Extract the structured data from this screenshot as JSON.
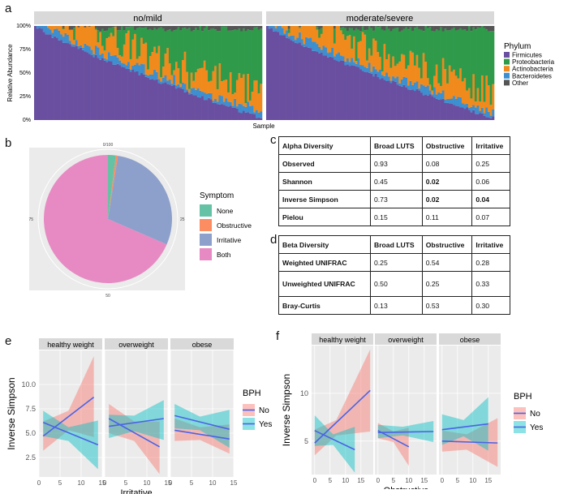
{
  "panel_labels": {
    "a": "a",
    "b": "b",
    "c": "c",
    "d": "d",
    "e": "e",
    "f": "f"
  },
  "chart_data": [
    {
      "type": "bar",
      "id": "a",
      "subtype": "stacked-relative-abundance",
      "facets": [
        "no/mild",
        "moderate/severe"
      ],
      "ylabel": "Relative Abundance",
      "xlabel": "Sample",
      "yticks": [
        "0%",
        "25%",
        "50%",
        "75%",
        "100%"
      ],
      "legend_title": "Phylum",
      "series": [
        {
          "name": "Firmicutes",
          "color": "#6a4fa0"
        },
        {
          "name": "Proteobacteria",
          "color": "#2e9a4a"
        },
        {
          "name": "Actinobacteria",
          "color": "#f08a1c"
        },
        {
          "name": "Bacteroidetes",
          "color": "#3d8fcf"
        },
        {
          "name": "Other",
          "color": "#555555"
        }
      ],
      "samples_per_facet": [
        105,
        105
      ],
      "firmicutes_range": [
        100,
        2
      ],
      "bacteroidetes_mean": 6,
      "actinobacteria_mean": 15,
      "other_mean": 3
    },
    {
      "type": "pie",
      "id": "b",
      "legend_title": "Symptom",
      "tick_labels": [
        "0/100",
        "25",
        "50",
        "75"
      ],
      "categories": [
        "None",
        "Obstructive",
        "Irritative",
        "Both"
      ],
      "values": [
        2,
        0.5,
        29,
        68.5
      ],
      "colors": [
        "#66c2a5",
        "#fc8d62",
        "#8da0cb",
        "#e78ac3"
      ]
    },
    {
      "type": "line",
      "id": "e",
      "facets": [
        "healthy weight",
        "overweight",
        "obese"
      ],
      "xlabel": "Irritative",
      "ylabel": "Inverse Simpson",
      "xlim": [
        0,
        15
      ],
      "ylim": [
        0.5,
        13.5
      ],
      "xticks": [
        0,
        5,
        10,
        15
      ],
      "yticks": [
        "2.5",
        "5.0",
        "7.5",
        "10.0"
      ],
      "legend_title": "BPH",
      "legend": [
        "No",
        "Yes"
      ],
      "series": [
        {
          "name": "No",
          "facets": [
            {
              "x": [
                1,
                13
              ],
              "y": [
                4.7,
                8.7
              ],
              "band": [
                [
                  1,
                  3.2,
                  6.2
                ],
                [
                  7,
                  5.3,
                  7.3
                ],
                [
                  13,
                  4.6,
                  12.9
                ]
              ]
            },
            {
              "x": [
                1,
                13
              ],
              "y": [
                6.5,
                3.6
              ],
              "band": [
                [
                  1,
                  5.0,
                  8.0
                ],
                [
                  7,
                  4.2,
                  6.2
                ],
                [
                  13,
                  0.8,
                  6.2
                ]
              ]
            },
            {
              "x": [
                1,
                14
              ],
              "y": [
                5.3,
                4.4
              ],
              "band": [
                [
                  1,
                  4.2,
                  6.5
                ],
                [
                  7,
                  4.3,
                  5.6
                ],
                [
                  14,
                  2.9,
                  5.9
                ]
              ]
            }
          ]
        },
        {
          "name": "Yes",
          "facets": [
            {
              "x": [
                1,
                14
              ],
              "y": [
                6.1,
                3.8
              ],
              "band": [
                [
                  1,
                  4.7,
                  7.3
                ],
                [
                  7,
                  4.2,
                  5.6
                ],
                [
                  14,
                  1.3,
                  6.3
                ]
              ]
            },
            {
              "x": [
                1,
                14
              ],
              "y": [
                5.7,
                6.5
              ],
              "band": [
                [
                  1,
                  4.5,
                  6.9
                ],
                [
                  7,
                  5.2,
                  6.8
                ],
                [
                  14,
                  4.3,
                  8.4
                ]
              ]
            },
            {
              "x": [
                1,
                14
              ],
              "y": [
                6.8,
                5.4
              ],
              "band": [
                [
                  1,
                  5.5,
                  8.0
                ],
                [
                  7,
                  5.3,
                  6.7
                ],
                [
                  14,
                  3.5,
                  7.4
                ]
              ]
            }
          ]
        }
      ]
    },
    {
      "type": "line",
      "id": "f",
      "facets": [
        "healthy weight",
        "overweight",
        "obese"
      ],
      "xlabel": "Obstructive",
      "ylabel": "Inverse Simpson",
      "xlim": [
        -1,
        19
      ],
      "ylim": [
        1.5,
        15
      ],
      "xticks": [
        0,
        5,
        10,
        15
      ],
      "yticks": [
        "5",
        "10"
      ],
      "legend_title": "BPH",
      "legend": [
        "No",
        "Yes"
      ],
      "series": [
        {
          "name": "No",
          "facets": [
            {
              "x": [
                0,
                18
              ],
              "y": [
                4.8,
                10.3
              ],
              "band": [
                [
                  0,
                  3.5,
                  6.2
                ],
                [
                  7,
                  5.6,
                  7.2
                ],
                [
                  18,
                  6.0,
                  14.6
                ]
              ]
            },
            {
              "x": [
                0,
                10
              ],
              "y": [
                6.1,
                4.4
              ],
              "band": [
                [
                  0,
                  5.3,
                  6.9
                ],
                [
                  5,
                  4.9,
                  6.0
                ],
                [
                  10,
                  2.4,
                  6.4
                ]
              ]
            },
            {
              "x": [
                0,
                18
              ],
              "y": [
                5.0,
                4.8
              ],
              "band": [
                [
                  0,
                  3.9,
                  6.1
                ],
                [
                  8,
                  4.1,
                  5.7
                ],
                [
                  18,
                  2.3,
                  7.4
                ]
              ]
            }
          ]
        },
        {
          "name": "Yes",
          "facets": [
            {
              "x": [
                0,
                13
              ],
              "y": [
                6.1,
                4.1
              ],
              "band": [
                [
                  0,
                  4.5,
                  7.7
                ],
                [
                  6,
                  4.6,
                  5.7
                ],
                [
                  13,
                  1.7,
                  6.5
                ]
              ]
            },
            {
              "x": [
                0,
                18
              ],
              "y": [
                5.9,
                6.0
              ],
              "band": [
                [
                  0,
                  5.3,
                  6.7
                ],
                [
                  8,
                  5.6,
                  6.5
                ],
                [
                  18,
                  4.9,
                  7.1
                ]
              ]
            },
            {
              "x": [
                0,
                15
              ],
              "y": [
                6.2,
                6.8
              ],
              "band": [
                [
                  0,
                  4.6,
                  7.8
                ],
                [
                  7,
                  5.5,
                  7.2
                ],
                [
                  15,
                  4.0,
                  9.6
                ]
              ]
            }
          ]
        }
      ]
    }
  ],
  "alpha_table": {
    "header": [
      "Alpha Diversity",
      "Broad LUTS",
      "Obstructive",
      "Irritative"
    ],
    "rows": [
      {
        "name": "Observed",
        "v1": "0.93",
        "v2": "0.08",
        "v3": "0.25"
      },
      {
        "name": "Shannon",
        "v1": "0.45",
        "v2": "0.02",
        "v3": "0.06"
      },
      {
        "name": "Inverse Simpson",
        "v1": "0.73",
        "v2": "0.02",
        "v3": "0.04"
      },
      {
        "name": "Pielou",
        "v1": "0.15",
        "v2": "0.11",
        "v3": "0.07"
      }
    ]
  },
  "beta_table": {
    "header": [
      "Beta Diversity",
      "Broad LUTS",
      "Obstructive",
      "Irritative"
    ],
    "rows": [
      {
        "name": "Weighted UNIFRAC",
        "v1": "0.25",
        "v2": "0.54",
        "v3": "0.28"
      },
      {
        "name": "Unweighted UNIFRAC",
        "v1": "0.50",
        "v2": "0.25",
        "v3": "0.33"
      },
      {
        "name": "Bray-Curtis",
        "v1": "0.13",
        "v2": "0.53",
        "v3": "0.30"
      }
    ]
  }
}
